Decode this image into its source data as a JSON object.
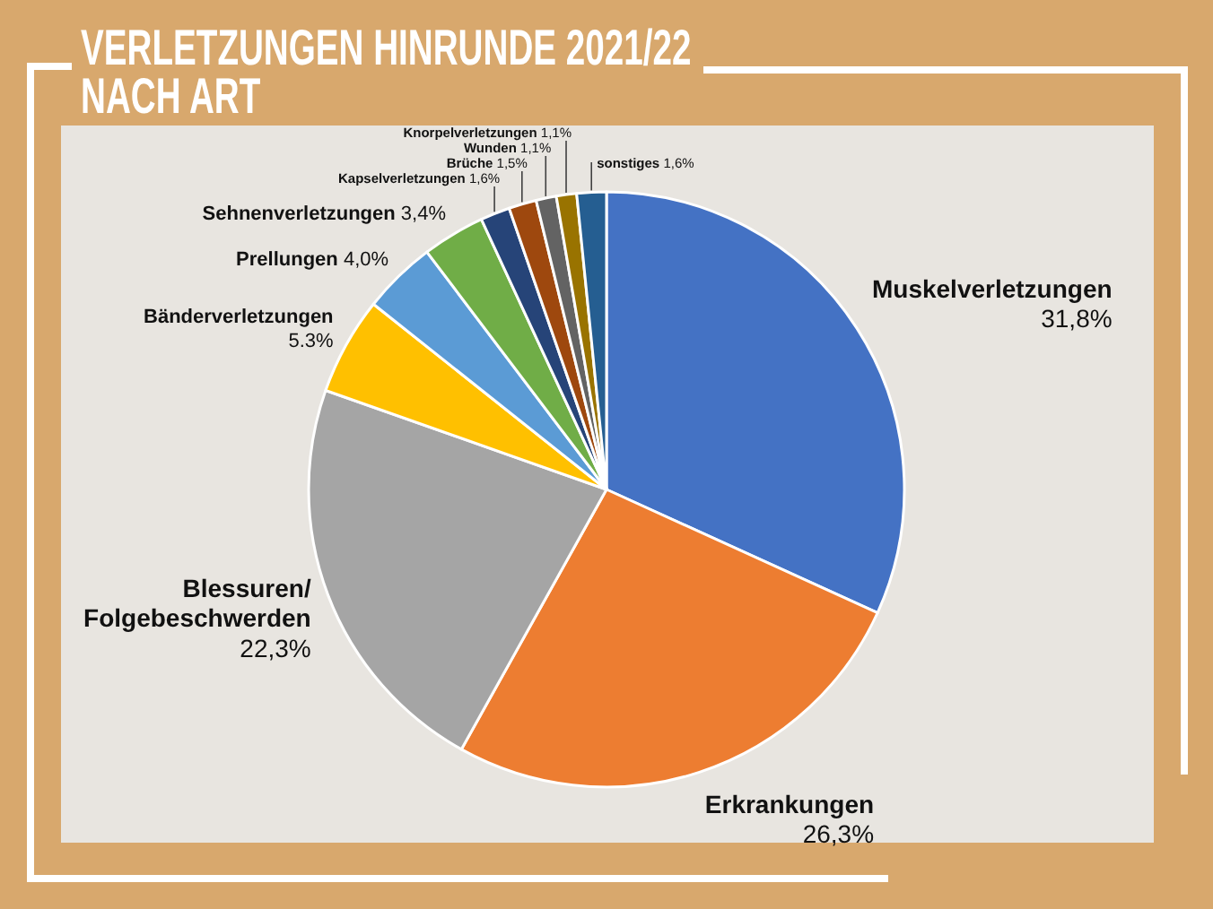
{
  "chart_data": {
    "type": "pie",
    "title": "VERLETZUNGEN HINRUNDE 2021/22 NACH ART",
    "categories": [
      "Muskelverletzungen",
      "Erkrankungen",
      "Blessuren/Folgebeschwerden",
      "Bänderverletzungen",
      "Prellungen",
      "Sehnenverletzungen",
      "Kapselverletzungen",
      "Brüche",
      "Wunden",
      "Knorpelverletzungen",
      "sonstiges"
    ],
    "values": [
      31.8,
      26.3,
      22.3,
      5.3,
      4.0,
      3.4,
      1.6,
      1.5,
      1.1,
      1.1,
      1.6
    ],
    "value_labels": [
      "31,8%",
      "26,3%",
      "22,3%",
      "5.3%",
      "4,0%",
      "3,4%",
      "1,6%",
      "1,5%",
      "1,1%",
      "1,1%",
      "1,6%"
    ],
    "colors": [
      "#4472c4",
      "#ed7d31",
      "#a5a5a5",
      "#ffc000",
      "#5b9bd5",
      "#70ad47",
      "#264478",
      "#9e480e",
      "#636363",
      "#997300",
      "#255e91"
    ]
  }
}
